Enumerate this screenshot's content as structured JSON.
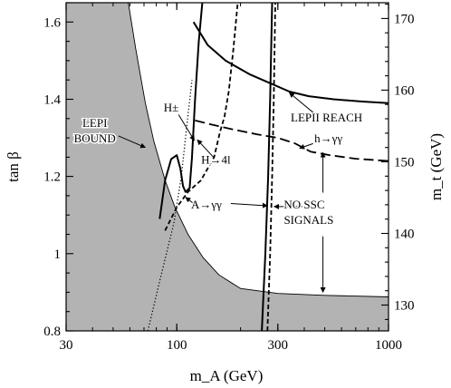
{
  "chart_data": {
    "type": "line",
    "title": "",
    "xlabel": "m_A (GeV)",
    "ylabel": "tan β",
    "y2label": "m_t (GeV)",
    "xscale": "log",
    "xlim": [
      30,
      1000
    ],
    "ylim": [
      0.8,
      1.65
    ],
    "y2lim": [
      126.4,
      172.2
    ],
    "grid": false,
    "x_ticks": [
      30,
      100,
      300,
      1000
    ],
    "x_tick_labels": [
      "30",
      "100",
      "300",
      "1000"
    ],
    "y_ticks": [
      0.8,
      1.0,
      1.2,
      1.4,
      1.6
    ],
    "y_tick_labels": [
      "0.8",
      "1",
      "1.2",
      "1.4",
      "1.6"
    ],
    "y2_ticks": [
      130,
      140,
      150,
      160,
      170
    ],
    "y2_tick_labels": [
      "130",
      "140",
      "150",
      "160",
      "170"
    ],
    "excluded_region": {
      "fill": "#b3b3b3",
      "boundary": [
        {
          "x": 59,
          "y": 1.65
        },
        {
          "x": 64,
          "y": 1.53
        },
        {
          "x": 71,
          "y": 1.39
        },
        {
          "x": 78,
          "y": 1.29
        },
        {
          "x": 88,
          "y": 1.19
        },
        {
          "x": 98,
          "y": 1.12
        },
        {
          "x": 113,
          "y": 1.05
        },
        {
          "x": 133,
          "y": 0.99
        },
        {
          "x": 158,
          "y": 0.945
        },
        {
          "x": 200,
          "y": 0.91
        },
        {
          "x": 300,
          "y": 0.897
        },
        {
          "x": 500,
          "y": 0.892
        },
        {
          "x": 1000,
          "y": 0.888
        }
      ]
    },
    "series": [
      {
        "style": "dotted",
        "points": [
          {
            "x": 73,
            "y": 0.8
          },
          {
            "x": 84,
            "y": 0.94
          },
          {
            "x": 97,
            "y": 1.08
          },
          {
            "x": 105,
            "y": 1.2
          },
          {
            "x": 112,
            "y": 1.34
          },
          {
            "x": 118,
            "y": 1.45
          }
        ]
      },
      {
        "style": "solid",
        "points": [
          {
            "x": 83,
            "y": 1.09
          },
          {
            "x": 88,
            "y": 1.19
          },
          {
            "x": 94,
            "y": 1.245
          },
          {
            "x": 100,
            "y": 1.255
          },
          {
            "x": 104,
            "y": 1.22
          },
          {
            "x": 107,
            "y": 1.175
          },
          {
            "x": 110,
            "y": 1.16
          },
          {
            "x": 115,
            "y": 1.17
          },
          {
            "x": 118,
            "y": 1.25
          },
          {
            "x": 122,
            "y": 1.4
          },
          {
            "x": 127,
            "y": 1.55
          },
          {
            "x": 132,
            "y": 1.65
          }
        ]
      },
      {
        "style": "dashed",
        "points": [
          {
            "x": 88,
            "y": 1.06
          },
          {
            "x": 100,
            "y": 1.12
          },
          {
            "x": 113,
            "y": 1.16
          },
          {
            "x": 130,
            "y": 1.19
          },
          {
            "x": 150,
            "y": 1.25
          },
          {
            "x": 160,
            "y": 1.315
          },
          {
            "x": 168,
            "y": 1.355
          },
          {
            "x": 176,
            "y": 1.42
          },
          {
            "x": 185,
            "y": 1.53
          },
          {
            "x": 194,
            "y": 1.65
          }
        ]
      },
      {
        "style": "long-dashed",
        "points": [
          {
            "x": 122,
            "y": 1.345
          },
          {
            "x": 145,
            "y": 1.335
          },
          {
            "x": 180,
            "y": 1.323
          },
          {
            "x": 240,
            "y": 1.309
          },
          {
            "x": 300,
            "y": 1.3
          },
          {
            "x": 360,
            "y": 1.286
          },
          {
            "x": 430,
            "y": 1.264
          },
          {
            "x": 530,
            "y": 1.255
          },
          {
            "x": 700,
            "y": 1.246
          },
          {
            "x": 1000,
            "y": 1.24
          }
        ]
      },
      {
        "style": "solid",
        "points": [
          {
            "x": 120,
            "y": 1.6
          },
          {
            "x": 140,
            "y": 1.54
          },
          {
            "x": 170,
            "y": 1.5
          },
          {
            "x": 220,
            "y": 1.465
          },
          {
            "x": 280,
            "y": 1.44
          },
          {
            "x": 340,
            "y": 1.42
          },
          {
            "x": 420,
            "y": 1.408
          },
          {
            "x": 550,
            "y": 1.4
          },
          {
            "x": 750,
            "y": 1.394
          },
          {
            "x": 1000,
            "y": 1.39
          }
        ]
      },
      {
        "style": "solid",
        "points": [
          {
            "x": 252,
            "y": 0.8
          },
          {
            "x": 262,
            "y": 1.0
          },
          {
            "x": 270,
            "y": 1.2
          },
          {
            "x": 276,
            "y": 1.4
          },
          {
            "x": 282,
            "y": 1.65
          }
        ]
      },
      {
        "style": "dashed",
        "points": [
          {
            "x": 268,
            "y": 0.8
          },
          {
            "x": 276,
            "y": 1.0
          },
          {
            "x": 282,
            "y": 1.2
          },
          {
            "x": 287,
            "y": 1.4
          },
          {
            "x": 292,
            "y": 1.65
          }
        ]
      }
    ],
    "annotations": [
      {
        "text": "LEPI",
        "x": 41,
        "y": 1.335
      },
      {
        "text": "BOUND",
        "x": 41,
        "y": 1.295
      },
      {
        "text": "H±",
        "x": 94,
        "y": 1.375
      },
      {
        "text": "H→4l",
        "x": 153,
        "y": 1.24
      },
      {
        "text": "A→γγ",
        "x": 138,
        "y": 1.124
      },
      {
        "text": "LEPII REACH",
        "x": 510,
        "y": 1.35
      },
      {
        "text": "h→γγ",
        "x": 520,
        "y": 1.296
      },
      {
        "text": "NO SSC",
        "x": 400,
        "y": 1.124
      },
      {
        "text": "SIGNALS",
        "x": 420,
        "y": 1.084
      }
    ],
    "arrows": [
      {
        "from": {
          "x": 53,
          "y": 1.305
        },
        "to": {
          "x": 71,
          "y": 1.275
        }
      },
      {
        "from": {
          "x": 102,
          "y": 1.36
        },
        "to": {
          "x": 121,
          "y": 1.293
        }
      },
      {
        "from": {
          "x": 150,
          "y": 1.248
        },
        "to": {
          "x": 125,
          "y": 1.295
        }
      },
      {
        "from": {
          "x": 120,
          "y": 1.13
        },
        "to": {
          "x": 110,
          "y": 1.146
        }
      },
      {
        "from": {
          "x": 180,
          "y": 1.13
        },
        "to": {
          "x": 268,
          "y": 1.124
        }
      },
      {
        "from": {
          "x": 392,
          "y": 1.122
        },
        "to": {
          "x": 288,
          "y": 1.122
        }
      },
      {
        "from": {
          "x": 460,
          "y": 1.357
        },
        "to": {
          "x": 340,
          "y": 1.417
        }
      },
      {
        "from": {
          "x": 440,
          "y": 1.285
        },
        "to": {
          "x": 380,
          "y": 1.273
        }
      },
      {
        "from": {
          "x": 490,
          "y": 1.158
        },
        "to": {
          "x": 490,
          "y": 1.262
        }
      },
      {
        "from": {
          "x": 490,
          "y": 1.045
        },
        "to": {
          "x": 490,
          "y": 0.9
        }
      }
    ]
  }
}
